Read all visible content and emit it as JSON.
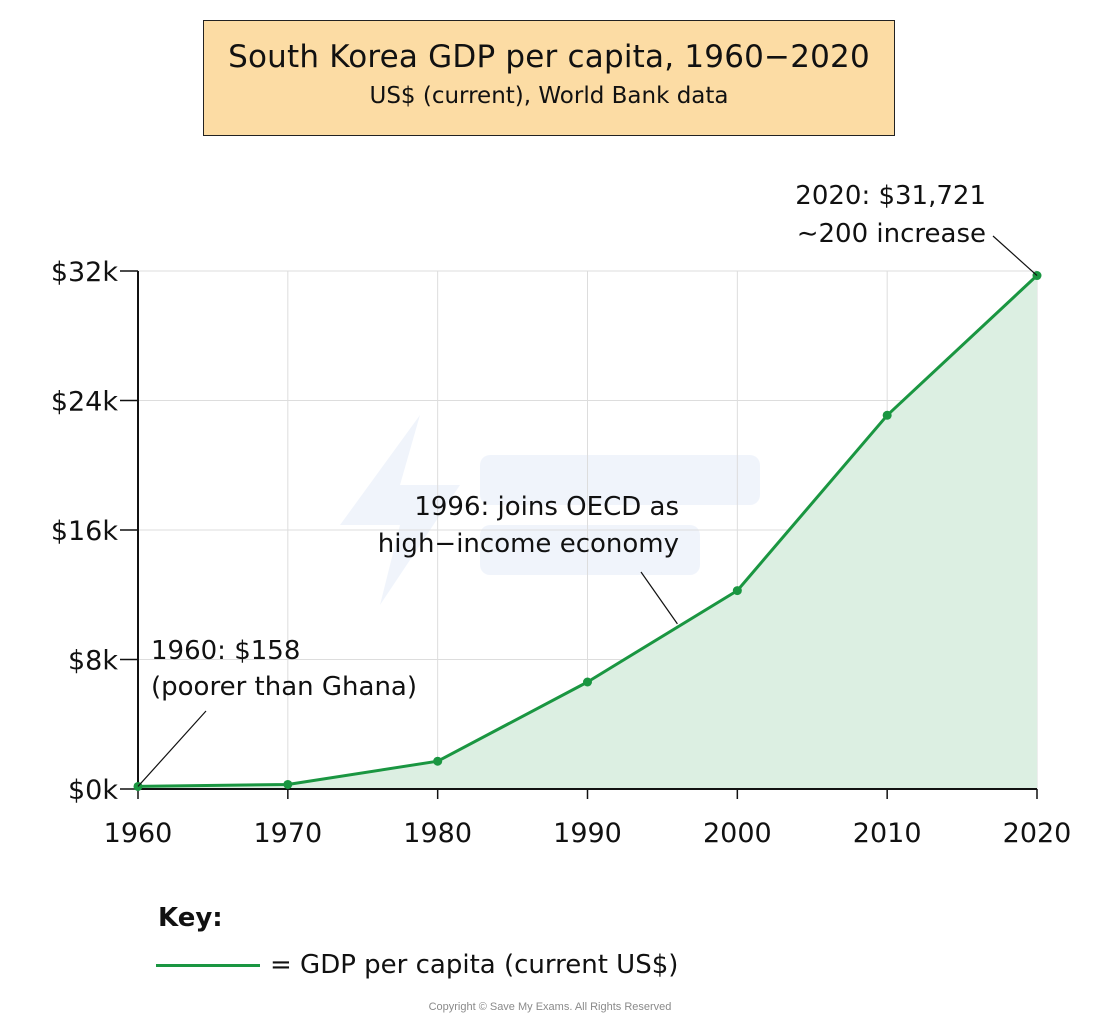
{
  "chart_data": {
    "type": "area",
    "title": "South Korea GDP per capita, 1960−2020",
    "subtitle": "US$ (current), World Bank data",
    "xlabel": "",
    "ylabel": "",
    "x": [
      1960,
      1970,
      1980,
      1990,
      2000,
      2010,
      2020
    ],
    "series": [
      {
        "name": "GDP per capita (current US$)",
        "values": [
          158,
          279,
          1715,
          6610,
          12257,
          23087,
          31721
        ]
      }
    ],
    "xlim": [
      1960,
      2020
    ],
    "ylim": [
      0,
      32000
    ],
    "x_ticks": [
      "1960",
      "1970",
      "1980",
      "1990",
      "2000",
      "2010",
      "2020"
    ],
    "y_ticks": [
      {
        "value": 0,
        "label": "$0k"
      },
      {
        "value": 8000,
        "label": "$8k"
      },
      {
        "value": 16000,
        "label": "$16k"
      },
      {
        "value": 24000,
        "label": "$24k"
      },
      {
        "value": 32000,
        "label": "$32k"
      }
    ],
    "grid": true,
    "line_color": "#1a9641",
    "fill_color": "#dcefe2",
    "annotations": [
      {
        "id": "a1960",
        "lines": [
          "1960: $158",
          "(poorer than Ghana)"
        ],
        "x": 1960,
        "y": 158
      },
      {
        "id": "a1996",
        "lines": [
          "1996: joins OECD as",
          "high−income economy"
        ],
        "x": 1996,
        "y": 10200
      },
      {
        "id": "a2020",
        "lines": [
          "2020: $31,721",
          "∼200  increase"
        ],
        "x": 2020,
        "y": 31721
      }
    ]
  },
  "key": {
    "title": "Key:",
    "entry": "= GDP per capita (current US$)"
  },
  "copyright": "Copyright © Save My Exams. All Rights Reserved",
  "colors": {
    "title_box_bg": "#fcdca4",
    "line": "#1a9641",
    "area": "#dcefe2"
  }
}
